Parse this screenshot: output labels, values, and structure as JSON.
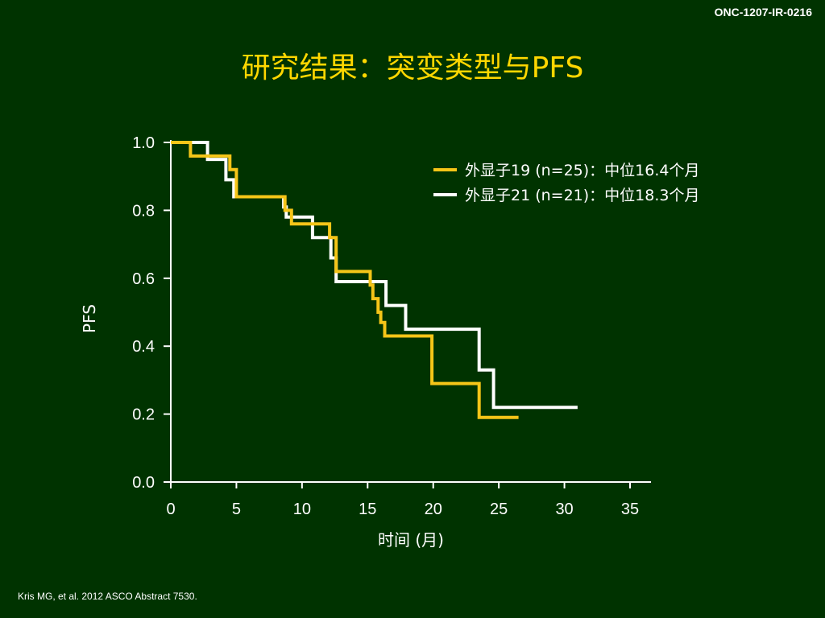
{
  "slide": {
    "code": "ONC-1207-IR-0216",
    "title": "研究结果：突变类型与PFS",
    "citation": "Kris MG, et al. 2012 ASCO Abstract 7530."
  },
  "colors": {
    "background": "#003300",
    "series_1": "#f5c518",
    "series_2": "#ffffff",
    "title": "#ffd700"
  },
  "chart_data": {
    "type": "line",
    "step": true,
    "title": "",
    "xlabel": "时间 (月)",
    "ylabel": "PFS",
    "xlim": [
      0,
      35
    ],
    "ylim": [
      0,
      1
    ],
    "x_ticks": [
      "0",
      "5",
      "10",
      "15",
      "20",
      "25",
      "30",
      "35"
    ],
    "y_ticks": [
      "0.0",
      "0.2",
      "0.4",
      "0.6",
      "0.8",
      "1.0"
    ],
    "grid": false,
    "legend_position": "top-right",
    "series": [
      {
        "name": "外显子19 (n=25)：中位16.4个月",
        "x": [
          0,
          1.5,
          1.5,
          4.5,
          4.5,
          5.0,
          5.0,
          8.7,
          8.7,
          9.2,
          9.2,
          12.1,
          12.1,
          12.6,
          12.6,
          15.2,
          15.2,
          15.4,
          15.4,
          15.8,
          15.8,
          16.0,
          16.0,
          16.3,
          16.3,
          19.9,
          19.9,
          23.5,
          23.5,
          26.5
        ],
        "y": [
          1.0,
          1.0,
          0.96,
          0.96,
          0.92,
          0.92,
          0.84,
          0.84,
          0.8,
          0.8,
          0.76,
          0.76,
          0.72,
          0.72,
          0.62,
          0.62,
          0.58,
          0.58,
          0.54,
          0.54,
          0.5,
          0.5,
          0.47,
          0.47,
          0.43,
          0.43,
          0.29,
          0.29,
          0.19,
          0.19
        ]
      },
      {
        "name": "外显子21 (n=21)：中位18.3个月",
        "x": [
          0,
          2.8,
          2.8,
          4.2,
          4.2,
          4.8,
          4.8,
          8.6,
          8.6,
          8.8,
          8.8,
          10.8,
          10.8,
          12.2,
          12.2,
          12.6,
          12.6,
          16.4,
          16.4,
          17.9,
          17.9,
          23.5,
          23.5,
          24.6,
          24.6,
          31.0
        ],
        "y": [
          1.0,
          1.0,
          0.95,
          0.95,
          0.89,
          0.89,
          0.84,
          0.84,
          0.81,
          0.81,
          0.78,
          0.78,
          0.72,
          0.72,
          0.66,
          0.66,
          0.59,
          0.59,
          0.52,
          0.52,
          0.45,
          0.45,
          0.33,
          0.33,
          0.22,
          0.22
        ]
      }
    ]
  }
}
